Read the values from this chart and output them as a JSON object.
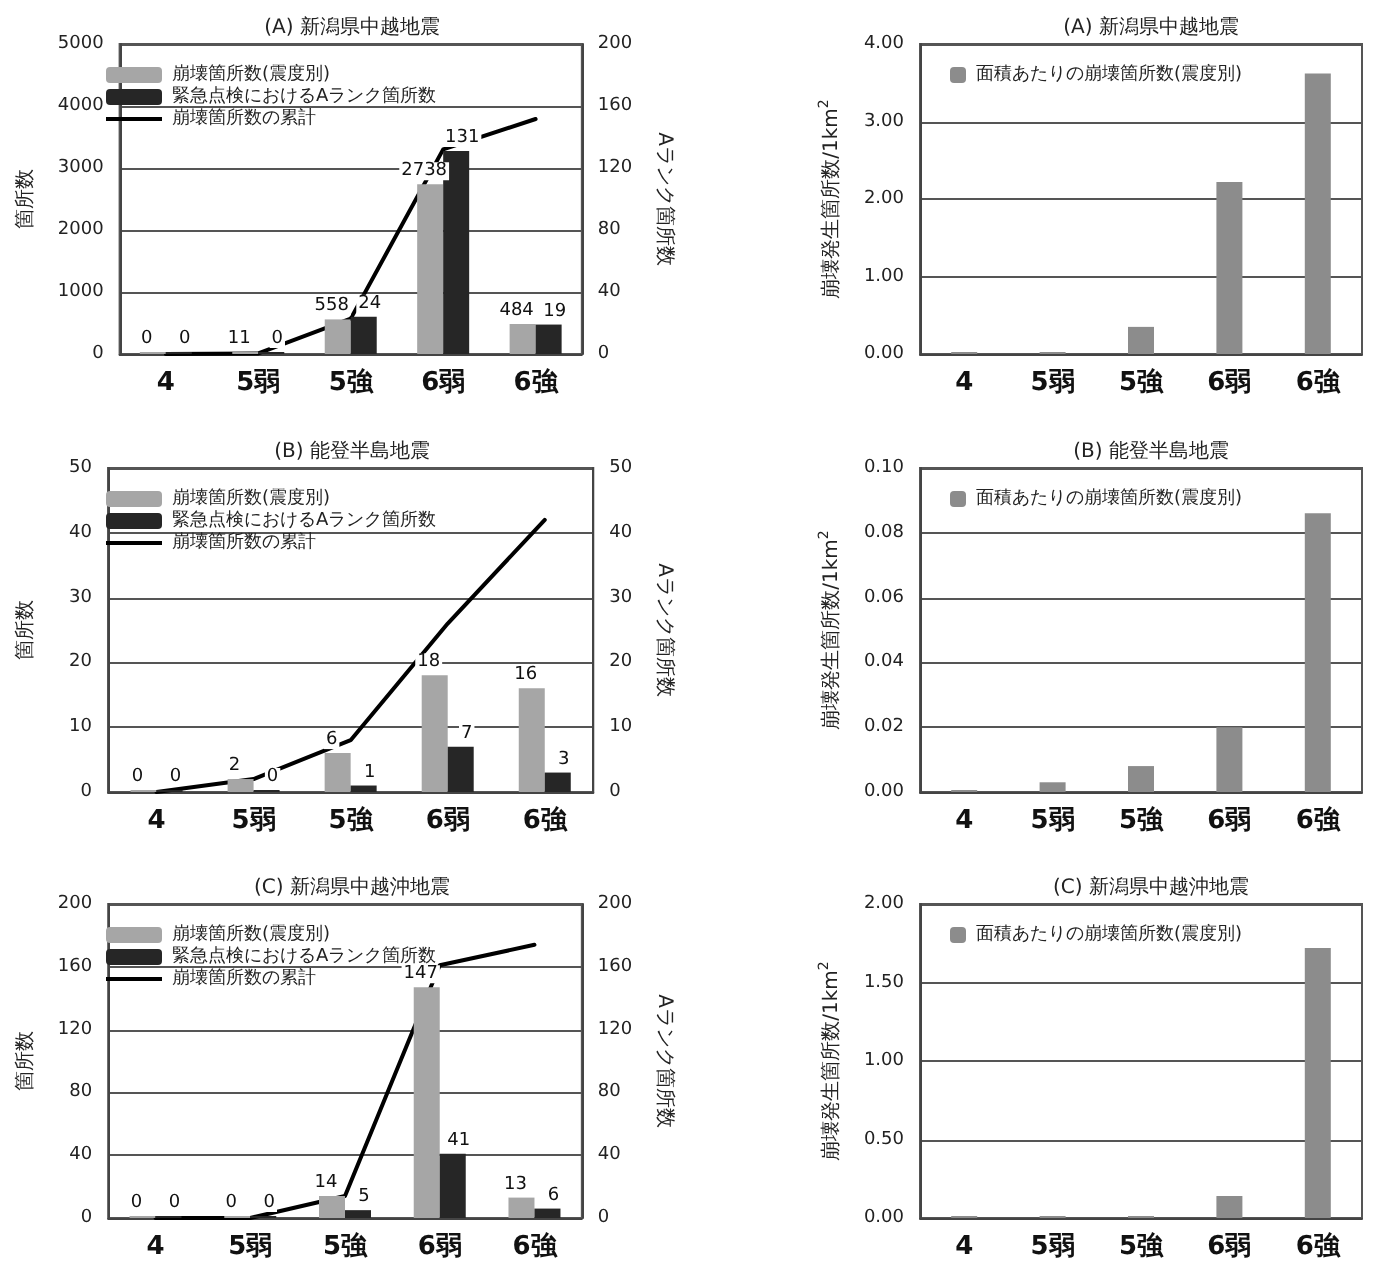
{
  "chart_data": [
    {
      "type": "bar",
      "title": "(A) 新潟県中越地震",
      "categories": [
        "4",
        "5弱",
        "5強",
        "6弱",
        "6強"
      ],
      "ylabel": "箇所数",
      "y2label": "Aランク箇所数",
      "ylim": [
        0,
        5000
      ],
      "yticks": [
        0,
        1000,
        2000,
        3000,
        4000,
        5000
      ],
      "y2lim": [
        0,
        200
      ],
      "y2ticks": [
        0,
        40,
        80,
        120,
        160,
        200
      ],
      "grid": "y",
      "legend": "top left",
      "series": [
        {
          "name": "崩壊箇所数(震度別)",
          "color": "#a6a6a6",
          "values": [
            0,
            11,
            558,
            2738,
            484
          ],
          "value_labels": [
            "0",
            "11",
            "558",
            "2738",
            "484"
          ]
        },
        {
          "name": "緊急点検におけるAランク箇所数",
          "color": "#262626",
          "axis": "y2",
          "values": [
            0,
            0,
            24,
            131,
            19
          ],
          "value_labels": [
            "0",
            "0",
            "24",
            "131",
            "19"
          ]
        },
        {
          "name": "崩壊箇所数の累計",
          "type": "line",
          "color": "#000000",
          "marker": "none",
          "values": [
            0,
            10,
            570,
            3300,
            3790
          ]
        }
      ]
    },
    {
      "type": "bar",
      "title": "(A) 新潟県中越地震",
      "categories": [
        "4",
        "5弱",
        "5強",
        "6弱",
        "6強"
      ],
      "ylabel": "崩壊発生箇所数/1km$^{2}$",
      "ylim": [
        0,
        4
      ],
      "yticks": [
        {
          "value": 0,
          "label": "0.00"
        },
        {
          "value": 1,
          "label": "1.00"
        },
        {
          "value": 2,
          "label": "2.00"
        },
        {
          "value": 3,
          "label": "3.00"
        },
        {
          "value": 4,
          "label": "4.00"
        }
      ],
      "grid": "y",
      "legend": "top left",
      "series": [
        {
          "name": "面積あたりの崩壊箇所数(震度別)",
          "color": "#8c8c8c",
          "values": [
            0,
            0,
            0.35,
            2.22,
            3.62
          ]
        }
      ]
    },
    {
      "type": "bar",
      "title": "(B) 能登半島地震",
      "categories": [
        "4",
        "5弱",
        "5強",
        "6弱",
        "6強"
      ],
      "ylabel": "箇所数",
      "y2label": "Aランク箇所数",
      "ylim": [
        0,
        50
      ],
      "yticks": [
        0,
        10,
        20,
        30,
        40,
        50
      ],
      "y2lim": [
        0,
        50
      ],
      "y2ticks": [
        0,
        10,
        20,
        30,
        40,
        50
      ],
      "grid": "y",
      "legend": "top left",
      "series": [
        {
          "name": "崩壊箇所数(震度別)",
          "color": "#a6a6a6",
          "values": [
            0,
            2,
            6,
            18,
            16
          ],
          "value_labels": [
            "0",
            "2",
            "6",
            "18",
            "16"
          ]
        },
        {
          "name": "緊急点検におけるAランク箇所数",
          "color": "#262626",
          "axis": "y2",
          "values": [
            0,
            0,
            1,
            7,
            3
          ],
          "value_labels": [
            "0",
            "0",
            "1",
            "7",
            "3"
          ]
        },
        {
          "name": "崩壊箇所数の累計",
          "type": "line",
          "color": "#000000",
          "marker": "none",
          "values": [
            0,
            2,
            8,
            26,
            42
          ]
        }
      ]
    },
    {
      "type": "bar",
      "title": "(B) 能登半島地震",
      "categories": [
        "4",
        "5弱",
        "5強",
        "6弱",
        "6強"
      ],
      "ylabel": "崩壊発生箇所数/1km$^{2}$",
      "ylim": [
        0,
        0.1
      ],
      "yticks": [
        {
          "value": 0,
          "label": "0.00"
        },
        {
          "value": 0.02,
          "label": "0.02"
        },
        {
          "value": 0.04,
          "label": "0.04"
        },
        {
          "value": 0.06,
          "label": "0.06"
        },
        {
          "value": 0.08,
          "label": "0.08"
        },
        {
          "value": 0.1,
          "label": "0.10"
        }
      ],
      "grid": "y",
      "legend": "top left",
      "series": [
        {
          "name": "面積あたりの崩壊箇所数(震度別)",
          "color": "#8c8c8c",
          "values": [
            0,
            0.003,
            0.008,
            0.02,
            0.086
          ]
        }
      ]
    },
    {
      "type": "bar",
      "title": "(C) 新潟県中越沖地震",
      "categories": [
        "4",
        "5弱",
        "5強",
        "6弱",
        "6強"
      ],
      "ylabel": "箇所数",
      "y2label": "Aランク箇所数",
      "ylim": [
        0,
        200
      ],
      "yticks": [
        0,
        40,
        80,
        120,
        160,
        200
      ],
      "y2lim": [
        0,
        200
      ],
      "y2ticks": [
        0,
        40,
        80,
        120,
        160,
        200
      ],
      "grid": "y",
      "legend": "top left",
      "series": [
        {
          "name": "崩壊箇所数(震度別)",
          "color": "#a6a6a6",
          "values": [
            0,
            0,
            14,
            147,
            13
          ],
          "value_labels": [
            "0",
            "0",
            "14",
            "147",
            "13"
          ]
        },
        {
          "name": "緊急点検におけるAランク箇所数",
          "color": "#262626",
          "axis": "y2",
          "values": [
            0,
            0,
            5,
            41,
            6
          ],
          "value_labels": [
            "0",
            "0",
            "5",
            "41",
            "6"
          ]
        },
        {
          "name": "崩壊箇所数の累計",
          "type": "line",
          "color": "#000000",
          "marker": "none",
          "values": [
            0,
            0,
            14,
            161,
            174
          ]
        }
      ]
    },
    {
      "type": "bar",
      "title": "(C) 新潟県中越沖地震",
      "categories": [
        "4",
        "5弱",
        "5強",
        "6弱",
        "6強"
      ],
      "ylabel": "崩壊発生箇所数/1km$^{2}$",
      "ylim": [
        0,
        2
      ],
      "yticks": [
        {
          "value": 0,
          "label": "0.00"
        },
        {
          "value": 0.5,
          "label": "0.50"
        },
        {
          "value": 1,
          "label": "1.00"
        },
        {
          "value": 1.5,
          "label": "1.50"
        },
        {
          "value": 2,
          "label": "2.00"
        }
      ],
      "grid": "y",
      "legend": "top left",
      "series": [
        {
          "name": "面積あたりの崩壊箇所数(震度別)",
          "color": "#8c8c8c",
          "values": [
            0,
            0,
            0,
            0.14,
            1.72
          ]
        }
      ]
    }
  ]
}
